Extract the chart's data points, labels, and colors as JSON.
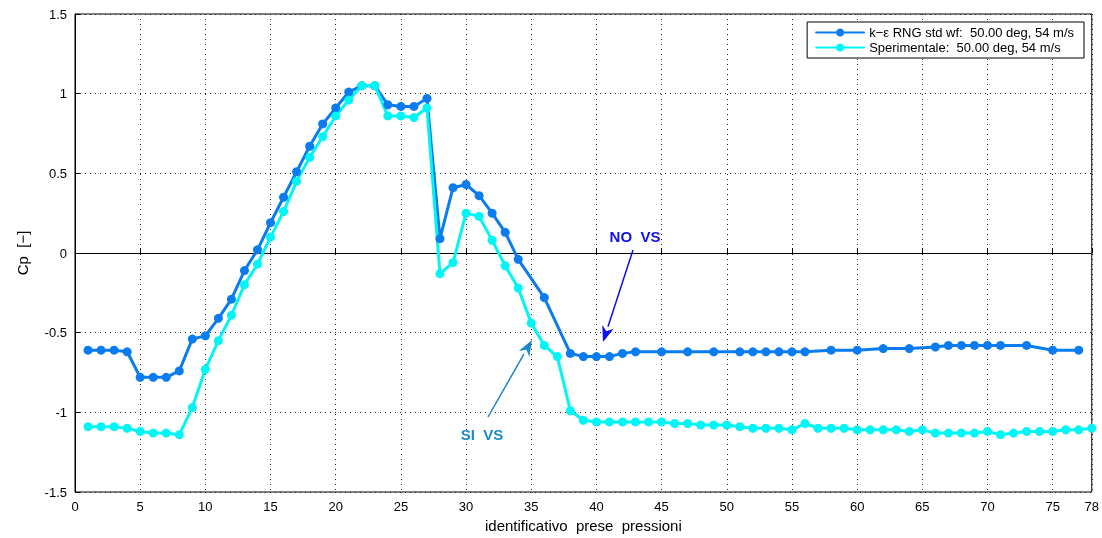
{
  "chart_data": {
    "type": "line",
    "xlabel": "identificativo  prese  pressioni",
    "ylabel": "Cp  [−]",
    "xlim": [
      0,
      78
    ],
    "xticks": [
      0,
      5,
      10,
      15,
      20,
      25,
      30,
      35,
      40,
      45,
      50,
      55,
      60,
      65,
      70,
      75,
      78
    ],
    "ylim": [
      -1.5,
      1.5
    ],
    "yticks": [
      -1.5,
      -1,
      -0.5,
      0,
      0.5,
      1,
      1.5
    ],
    "grid": true,
    "legend": "top right",
    "marker": "circle",
    "line_style": "solid",
    "annotations": [
      "NO  VS",
      "SI  VS"
    ],
    "series": [
      {
        "name": "k−ε RNG std wf:  50.00 deg, 54 m/s",
        "color": "#0a7cf0",
        "x": [
          1,
          2,
          3,
          4,
          5,
          6,
          7,
          8,
          9,
          10,
          11,
          12,
          13,
          14,
          15,
          16,
          17,
          18,
          19,
          20,
          21,
          22,
          23,
          24,
          25,
          26,
          27,
          28,
          29,
          30,
          31,
          32,
          33,
          34,
          36,
          38,
          39,
          40,
          41,
          42,
          43,
          45,
          47,
          49,
          51,
          52,
          53,
          54,
          55,
          56,
          58,
          60,
          62,
          64,
          66,
          67,
          68,
          69,
          70,
          71,
          73,
          75,
          77
        ],
        "values": [
          -0.61,
          -0.61,
          -0.61,
          -0.62,
          -0.78,
          -0.78,
          -0.78,
          -0.74,
          -0.54,
          -0.52,
          -0.41,
          -0.29,
          -0.11,
          0.02,
          0.19,
          0.35,
          0.51,
          0.67,
          0.81,
          0.91,
          1.01,
          1.05,
          1.05,
          0.93,
          0.92,
          0.92,
          0.97,
          0.09,
          0.41,
          0.43,
          0.36,
          0.25,
          0.13,
          -0.04,
          -0.28,
          -0.63,
          -0.65,
          -0.65,
          -0.65,
          -0.63,
          -0.62,
          -0.62,
          -0.62,
          -0.62,
          -0.62,
          -0.62,
          -0.62,
          -0.62,
          -0.62,
          -0.62,
          -0.61,
          -0.61,
          -0.6,
          -0.6,
          -0.59,
          -0.58,
          -0.58,
          -0.58,
          -0.58,
          -0.58,
          -0.58,
          -0.61,
          -0.61
        ]
      },
      {
        "name": "Sperimentale:  50.00 deg, 54 m/s",
        "color": "#00f5f5",
        "x": [
          1,
          2,
          3,
          4,
          5,
          6,
          7,
          8,
          9,
          10,
          11,
          12,
          13,
          14,
          15,
          16,
          17,
          18,
          19,
          20,
          21,
          22,
          23,
          24,
          25,
          26,
          27,
          28,
          29,
          30,
          31,
          32,
          33,
          34,
          35,
          36,
          37,
          38,
          39,
          40,
          41,
          42,
          43,
          44,
          45,
          46,
          47,
          48,
          49,
          50,
          51,
          52,
          53,
          54,
          55,
          56,
          57,
          58,
          59,
          60,
          61,
          62,
          63,
          64,
          65,
          66,
          67,
          68,
          69,
          70,
          71,
          72,
          73,
          74,
          75,
          76,
          77,
          78
        ],
        "values": [
          -1.09,
          -1.09,
          -1.09,
          -1.1,
          -1.12,
          -1.13,
          -1.13,
          -1.14,
          -0.97,
          -0.73,
          -0.55,
          -0.39,
          -0.2,
          -0.07,
          0.1,
          0.26,
          0.45,
          0.6,
          0.73,
          0.86,
          0.96,
          1.05,
          1.05,
          0.86,
          0.86,
          0.85,
          0.91,
          -0.13,
          -0.06,
          0.25,
          0.23,
          0.08,
          -0.08,
          -0.22,
          -0.44,
          -0.58,
          -0.65,
          -0.99,
          -1.05,
          -1.06,
          -1.06,
          -1.06,
          -1.06,
          -1.06,
          -1.06,
          -1.07,
          -1.07,
          -1.08,
          -1.08,
          -1.08,
          -1.09,
          -1.1,
          -1.1,
          -1.1,
          -1.11,
          -1.07,
          -1.1,
          -1.1,
          -1.1,
          -1.11,
          -1.11,
          -1.11,
          -1.11,
          -1.12,
          -1.11,
          -1.13,
          -1.13,
          -1.13,
          -1.13,
          -1.12,
          -1.14,
          -1.13,
          -1.12,
          -1.12,
          -1.12,
          -1.11,
          -1.11,
          -1.1
        ]
      }
    ]
  }
}
